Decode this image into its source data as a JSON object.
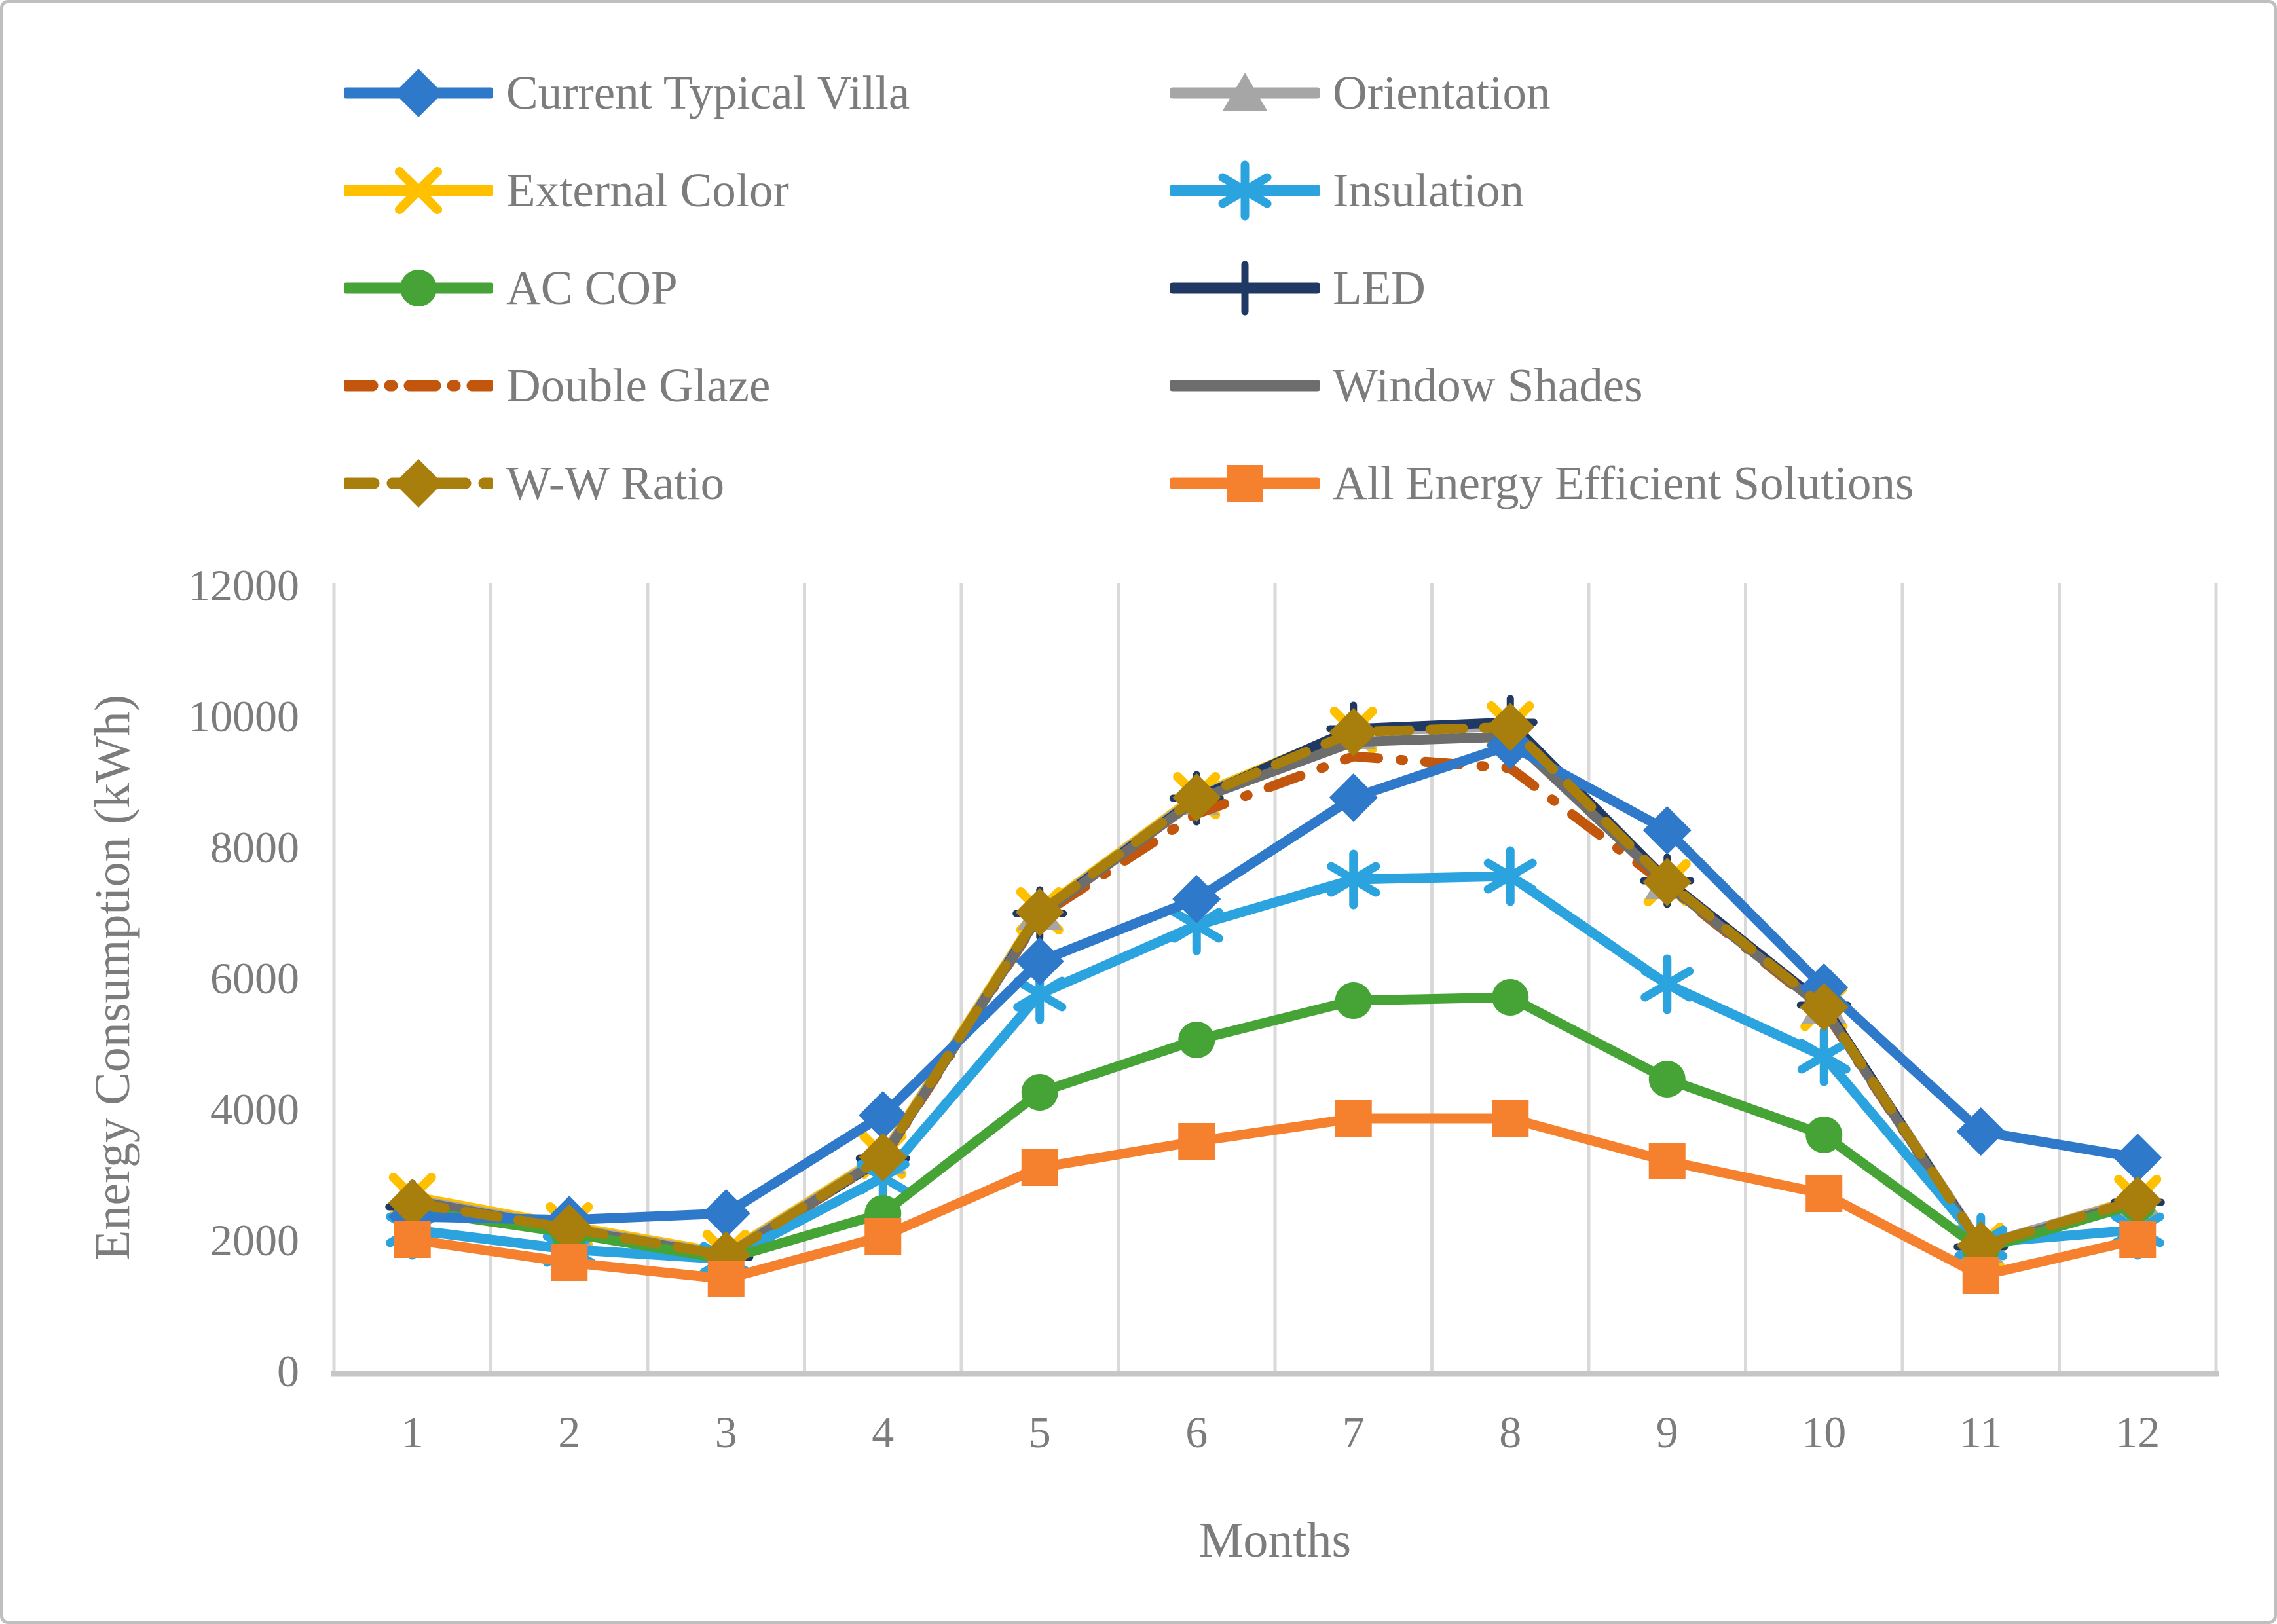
{
  "figure": {
    "background_color": "#FFFFFF",
    "border_color": "#BFBFBF",
    "text_color": "#7C7C7C",
    "gridline_color": "#D9D9D9",
    "axis_line_color": "#C6C6C6"
  },
  "chart_data": {
    "type": "line",
    "title": "",
    "xlabel": "Months",
    "ylabel": "Energy Consumption (kWh)",
    "x": [
      1,
      2,
      3,
      4,
      5,
      6,
      7,
      8,
      9,
      10,
      11,
      12
    ],
    "ylim": [
      0,
      12000
    ],
    "yticks": [
      0,
      2000,
      4000,
      6000,
      8000,
      10000,
      12000
    ],
    "grid": "vertical-only",
    "legend_position": "top-two-columns",
    "series": [
      {
        "name": "Current Typical Villa",
        "color": "#2E79CA",
        "marker": "diamond",
        "line": "solid",
        "values": [
          2350,
          2300,
          2400,
          3900,
          6250,
          7200,
          8750,
          9550,
          8250,
          5850,
          3650,
          3250
        ]
      },
      {
        "name": "Orientation",
        "color": "#A6A6A6",
        "marker": "triangle",
        "line": "solid",
        "values": [
          2620,
          2180,
          1770,
          3270,
          7000,
          8760,
          9760,
          9840,
          7470,
          5570,
          1920,
          2610
        ]
      },
      {
        "name": "External Color",
        "color": "#FFC000",
        "marker": "x",
        "line": "solid",
        "values": [
          2660,
          2210,
          1790,
          3290,
          7020,
          8780,
          9780,
          9860,
          7450,
          5545,
          1900,
          2630
        ]
      },
      {
        "name": "Insulation",
        "color": "#2BA3DE",
        "marker": "asterisk",
        "line": "solid",
        "values": [
          2150,
          1850,
          1700,
          2950,
          5750,
          6800,
          7500,
          7550,
          5900,
          4800,
          1950,
          2150
        ]
      },
      {
        "name": "AC COP",
        "color": "#46A437",
        "marker": "circle",
        "line": "solid",
        "values": [
          2450,
          2100,
          1700,
          2400,
          4250,
          5050,
          5650,
          5700,
          4450,
          3600,
          1850,
          2550
        ]
      },
      {
        "name": "LED",
        "color": "#1F3864",
        "marker": "plus",
        "line": "solid",
        "values": [
          2500,
          2130,
          1730,
          3240,
          6980,
          8740,
          9800,
          9900,
          7480,
          5580,
          1890,
          2570
        ]
      },
      {
        "name": "Double Glaze",
        "color": "#C1560C",
        "marker": "none",
        "line": "dashdot",
        "values": [
          2530,
          2140,
          1740,
          3230,
          6940,
          8500,
          9380,
          9200,
          7410,
          5510,
          1870,
          2560
        ]
      },
      {
        "name": "Window Shades",
        "color": "#6D6D6D",
        "marker": "none",
        "line": "solid",
        "values": [
          2600,
          2160,
          1750,
          3250,
          6960,
          8720,
          9600,
          9680,
          7430,
          5530,
          1880,
          2590
        ]
      },
      {
        "name": "W-W Ratio",
        "color": "#A87E0C",
        "marker": "diamond",
        "line": "dash",
        "values": [
          2560,
          2170,
          1760,
          3260,
          7000,
          8750,
          9750,
          9830,
          7460,
          5550,
          1910,
          2600
        ]
      },
      {
        "name": "All Energy Efficient Solutions",
        "color": "#F5802E",
        "marker": "square",
        "line": "solid",
        "values": [
          2000,
          1650,
          1400,
          2050,
          3100,
          3500,
          3850,
          3850,
          3200,
          2700,
          1450,
          2000
        ]
      }
    ]
  }
}
